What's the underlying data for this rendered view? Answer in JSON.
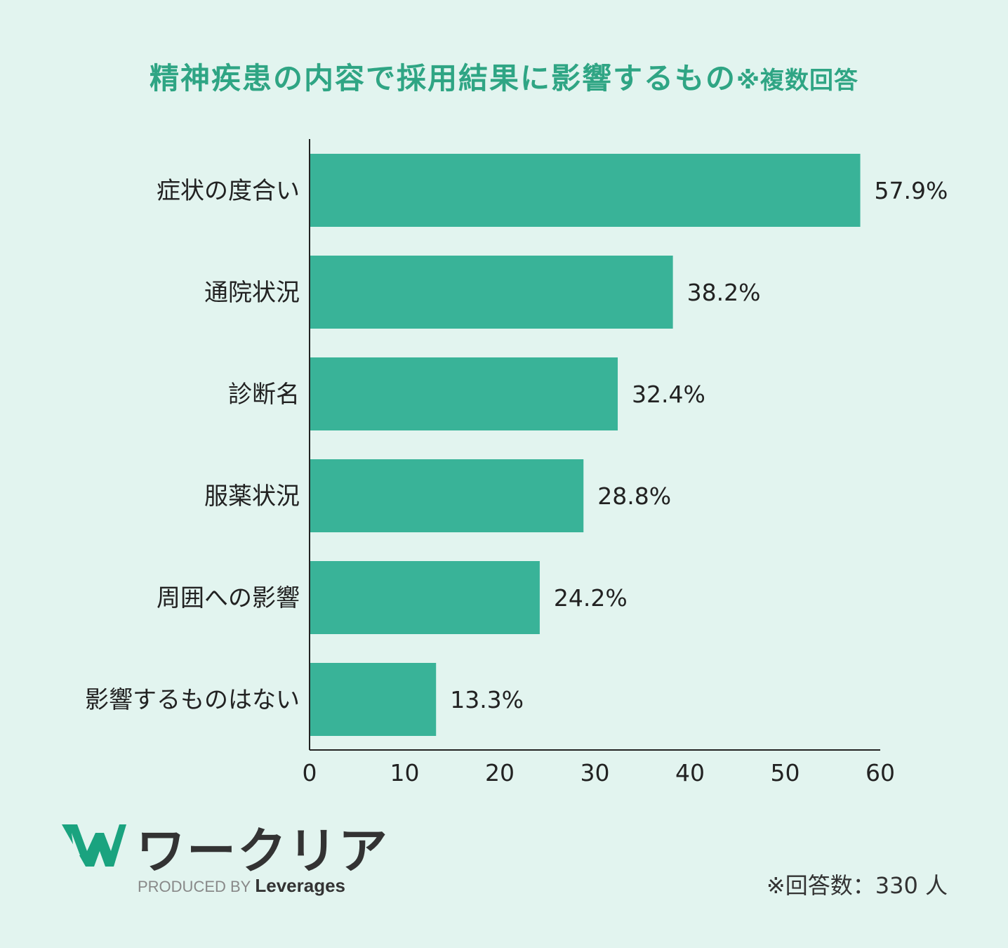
{
  "title": {
    "main": "精神疾患の内容で採用結果に影響するもの",
    "note": "※複数回答"
  },
  "chart_data": {
    "type": "bar",
    "orientation": "horizontal",
    "categories": [
      "症状の度合い",
      "通院状況",
      "診断名",
      "服薬状況",
      "周囲への影響",
      "影響するものはない"
    ],
    "values": [
      57.9,
      38.2,
      32.4,
      28.8,
      24.2,
      13.3
    ],
    "value_labels": [
      "57.9%",
      "38.2%",
      "32.4%",
      "28.8%",
      "24.2%",
      "13.3%"
    ],
    "x_ticks": [
      "0",
      "10",
      "20",
      "30",
      "40",
      "50",
      "60"
    ],
    "xlim": [
      0,
      60
    ],
    "grid": false,
    "bar_color": "#39b398"
  },
  "logo": {
    "name": "ワークリア",
    "produced_by": "PRODUCED BY",
    "brand": "Leverages",
    "mark_color": "#1aa37f"
  },
  "footer": {
    "respondents": "※回答数：330 人"
  }
}
